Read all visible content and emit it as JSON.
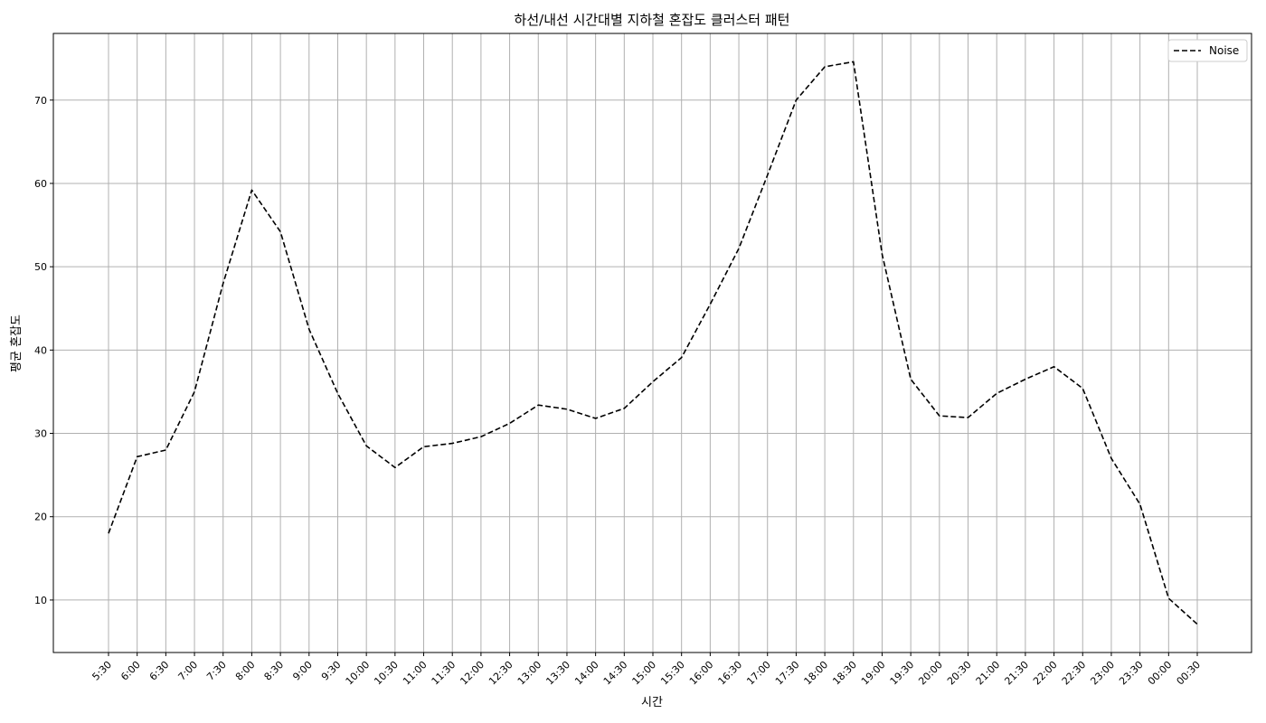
{
  "chart_data": {
    "type": "line",
    "title": "하선/내선 시간대별 지하철 혼잡도 클러스터 패턴",
    "xlabel": "시간",
    "ylabel": "평균 혼잡도",
    "categories": [
      "5:30",
      "6:00",
      "6:30",
      "7:00",
      "7:30",
      "8:00",
      "8:30",
      "9:00",
      "9:30",
      "10:00",
      "10:30",
      "11:00",
      "11:30",
      "12:00",
      "12:30",
      "13:00",
      "13:30",
      "14:00",
      "14:30",
      "15:00",
      "15:30",
      "16:00",
      "16:30",
      "17:00",
      "17:30",
      "18:00",
      "18:30",
      "19:00",
      "19:30",
      "20:00",
      "20:30",
      "21:00",
      "21:30",
      "22:00",
      "22:30",
      "23:00",
      "23:30",
      "00:00",
      "00:30"
    ],
    "series": [
      {
        "name": "Noise",
        "color": "#000000",
        "line_style": "dashed",
        "values": [
          18.0,
          27.2,
          28.0,
          35.0,
          48.0,
          59.2,
          54.2,
          42.5,
          34.8,
          28.5,
          25.9,
          28.4,
          28.8,
          29.6,
          31.2,
          33.4,
          32.9,
          31.8,
          33.0,
          36.2,
          39.1,
          45.5,
          52.2,
          61.0,
          70.0,
          74.0,
          74.6,
          51.5,
          36.5,
          32.1,
          31.9,
          34.8,
          36.5,
          38.0,
          35.4,
          27.0,
          21.5,
          10.2,
          7.1
        ]
      }
    ],
    "ylim": [
      3.7,
      78.0
    ],
    "yticks": [
      10,
      20,
      30,
      40,
      50,
      60,
      70
    ],
    "grid": true,
    "legend_position": "top-right"
  }
}
